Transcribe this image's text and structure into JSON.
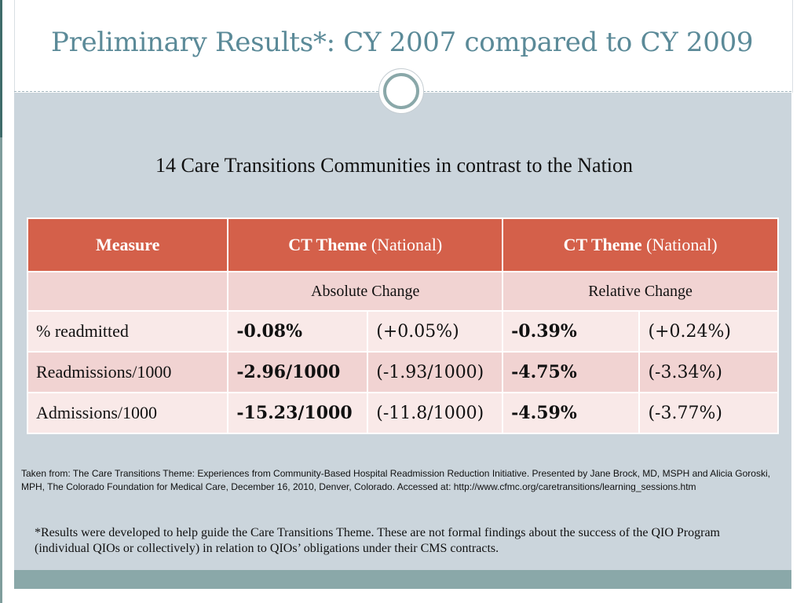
{
  "slide": {
    "title": "Preliminary Results*:  CY 2007 compared to CY 2009",
    "subtitle": "14 Care Transitions Communities in contrast to the Nation"
  },
  "table": {
    "headers": {
      "measure": "Measure",
      "col1_bold": "CT Theme",
      "col1_normal": "(National)",
      "col2_bold": "CT Theme",
      "col2_normal": "(National)"
    },
    "subheaders": {
      "absolute": "Absolute Change",
      "relative": "Relative Change"
    },
    "rows": [
      {
        "measure": "% readmitted",
        "abs_ct": "-0.08%",
        "abs_nat": "(+0.05%)",
        "rel_ct": "-0.39%",
        "rel_nat": "(+0.24%)"
      },
      {
        "measure": "Readmissions/1000",
        "abs_ct": "-2.96/1000",
        "abs_nat": "(-1.93/1000)",
        "rel_ct": "-4.75%",
        "rel_nat": "(-3.34%)"
      },
      {
        "measure": "Admissions/1000",
        "abs_ct": "-15.23/1000",
        "abs_nat": "(-11.8/1000)",
        "rel_ct": "-4.59%",
        "rel_nat": "(-3.77%)"
      }
    ]
  },
  "source_text": "Taken from:  The Care Transitions Theme: Experiences from Community-Based Hospital Readmission Reduction Initiative.  Presented by Jane Brock, MD, MSPH and Alicia Goroski, MPH, The Colorado Foundation for Medical Care, December 16, 2010, Denver, Colorado.  Accessed at: http://www.cfmc.org/caretransitions/learning_sessions.htm",
  "footnote": "*Results were developed to help guide the Care Transitions Theme.  These are not formal findings about the success of the QIO Program (individual QIOs or collectively) in relation to QIOs’ obligations under their CMS contracts.",
  "colors": {
    "title": "#5b8a98",
    "header_fill": "#d4604a",
    "row_light": "#f9e9e8",
    "row_dark": "#f1d3d2",
    "content_bg": "#cbd5dc",
    "accent_bar": "#8aa8a9"
  }
}
